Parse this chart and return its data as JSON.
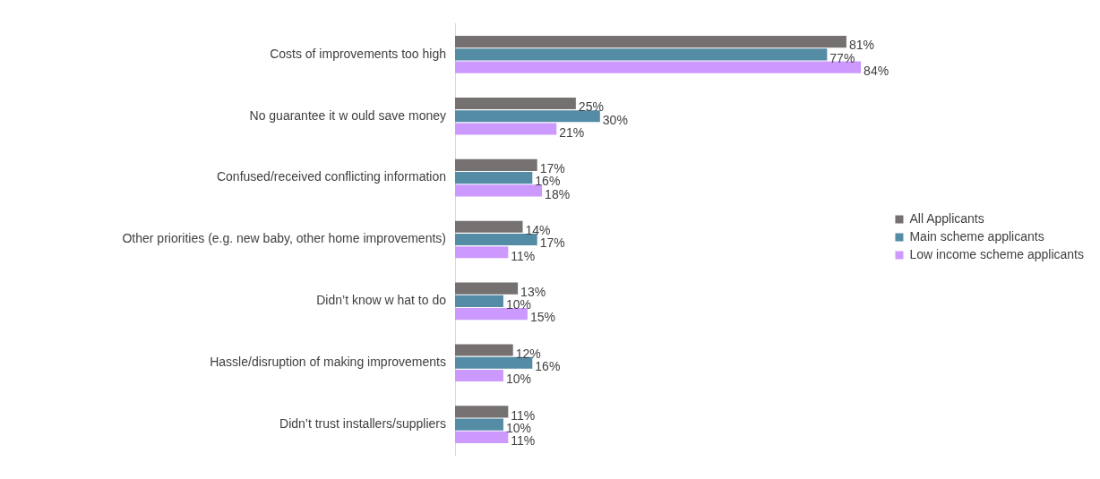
{
  "chart_data": {
    "type": "bar",
    "orientation": "horizontal",
    "categories": [
      "Costs of improvements too high",
      "No guarantee it w ould save money",
      "Confused/received conflicting information",
      "Other priorities (e.g. new baby, other home improvements)",
      "Didn’t know w hat to do",
      "Hassle/disruption of making improvements",
      "Didn’t trust installers/suppliers"
    ],
    "series": [
      {
        "name": "All Applicants",
        "color": "#767171",
        "values": [
          81,
          25,
          17,
          14,
          13,
          12,
          11
        ],
        "value_labels": [
          "81%",
          "25%",
          "17%",
          "14%",
          "13%",
          "12%",
          "11%"
        ]
      },
      {
        "name": "Main scheme applicants",
        "color": "#548ca6",
        "values": [
          77,
          30,
          16,
          17,
          10,
          16,
          10
        ],
        "value_labels": [
          "77%",
          "30%",
          "16%",
          "17%",
          "10%",
          "16%",
          "10%"
        ]
      },
      {
        "name": "Low income scheme applicants",
        "color": "#cc99ff",
        "values": [
          84,
          21,
          18,
          11,
          15,
          10,
          11
        ],
        "value_labels": [
          "84%",
          "21%",
          "18%",
          "11%",
          "15%",
          "10%",
          "11%"
        ]
      }
    ],
    "legend": "right"
  }
}
